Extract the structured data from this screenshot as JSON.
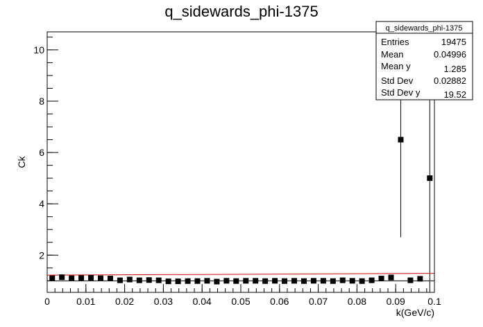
{
  "stats_box": {
    "name": "q_sidewards_phi-1375",
    "rows": [
      {
        "label": "Entries",
        "value": "19475"
      },
      {
        "label": "Mean",
        "value": "0.04996"
      },
      {
        "label": "Mean y",
        "value": "1.285"
      },
      {
        "label": "Std Dev",
        "value": "0.02882"
      },
      {
        "label": "Std Dev y",
        "value": "19.52"
      }
    ]
  },
  "chart_data": {
    "type": "scatter",
    "title": "q_sidewards_phi-1375",
    "xlabel": "k(GeV/c)",
    "ylabel": "Ck",
    "xlim": [
      0,
      0.1
    ],
    "ylim": [
      0.55,
      10.7
    ],
    "x_ticks": [
      0,
      0.01,
      0.02,
      0.03,
      0.04,
      0.05,
      0.06,
      0.07,
      0.08,
      0.09,
      0.1
    ],
    "x_tick_labels": [
      "0",
      "0.01",
      "0.02",
      "0.03",
      "0.04",
      "0.05",
      "0.06",
      "0.07",
      "0.08",
      "0.09",
      "0.1"
    ],
    "y_ticks": [
      2,
      4,
      6,
      8,
      10
    ],
    "y_tick_labels": [
      "2",
      "4",
      "6",
      "8",
      "10"
    ],
    "grid": false,
    "series": [
      {
        "marker": "square",
        "color": "#000000",
        "x": [
          0.0013,
          0.0038,
          0.0063,
          0.0088,
          0.0113,
          0.0138,
          0.0163,
          0.0188,
          0.0213,
          0.0238,
          0.0263,
          0.0288,
          0.0313,
          0.0338,
          0.0363,
          0.0388,
          0.0413,
          0.0438,
          0.0463,
          0.0488,
          0.0513,
          0.0538,
          0.0563,
          0.0588,
          0.0613,
          0.0638,
          0.0663,
          0.0688,
          0.0713,
          0.0738,
          0.0763,
          0.0788,
          0.0813,
          0.0838,
          0.0863,
          0.0888,
          0.0913,
          0.0938,
          0.0963,
          0.0988
        ],
        "y": [
          1.1,
          1.14,
          1.1,
          1.11,
          1.12,
          1.1,
          1.09,
          1.02,
          1.05,
          1.02,
          1.03,
          1.02,
          0.98,
          0.98,
          0.99,
          0.99,
          1.0,
          0.97,
          1.0,
          0.99,
          1.0,
          1.0,
          0.99,
          1.0,
          0.99,
          1.0,
          0.99,
          1.0,
          1.0,
          0.99,
          1.02,
          1.0,
          0.99,
          1.02,
          1.09,
          1.13,
          6.5,
          1.02,
          1.08,
          5.0
        ],
        "err_y": [
          0.03,
          0.03,
          0.03,
          0.03,
          0.03,
          0.03,
          0.03,
          0.03,
          0.03,
          0.03,
          0.03,
          0.03,
          0.03,
          0.03,
          0.03,
          0.03,
          0.03,
          0.03,
          0.03,
          0.03,
          0.03,
          0.03,
          0.03,
          0.03,
          0.03,
          0.03,
          0.03,
          0.03,
          0.03,
          0.03,
          0.03,
          0.03,
          0.03,
          0.03,
          0.04,
          0.05,
          3.8,
          0.05,
          0.08,
          6.0
        ]
      }
    ],
    "fit_line": {
      "color": "#cc0000",
      "x": [
        0.0,
        0.1
      ],
      "y": [
        1.22,
        1.29
      ]
    },
    "reference_line": {
      "color": "#000000",
      "y": 1.0
    }
  }
}
